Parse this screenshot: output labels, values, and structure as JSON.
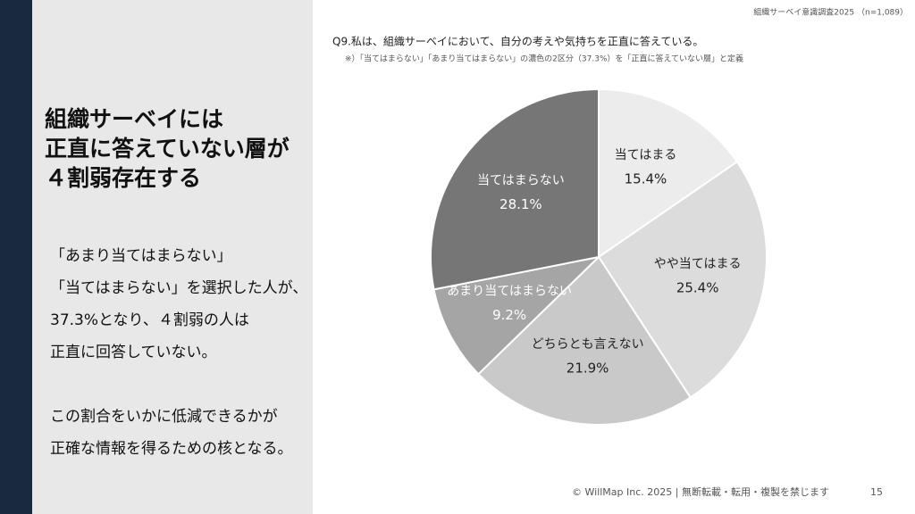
{
  "header": {
    "survey": "組織サーベイ意識調査2025 （n=1,089）"
  },
  "left_panel": {
    "title_lines": [
      "組織サーベイには",
      "正直に答えていない層が",
      "４割弱存在する"
    ],
    "body_lines": [
      "「あまり当てはまらない」",
      "「当てはまらない」を選択した人が、",
      "37.3%となり、４割弱の人は",
      "正直に回答していない。"
    ],
    "conclusion_lines": [
      "この割合をいかに低減できるかが",
      "正確な情報を得るための核となる。"
    ]
  },
  "chart_data": {
    "type": "pie",
    "title": "Q9.私は、組織サーベイにおいて、自分の考えや気持ちを正直に答えている。",
    "note": "※）「当てはまらない」「あまり当てはまらない」の濃色の2区分（37.3%）を「正直に答えていない層」と定義",
    "categories": [
      "当てはまる",
      "やや当てはまる",
      "どちらとも言えない",
      "あまり当てはまらない",
      "当てはまらない"
    ],
    "values": [
      15.4,
      25.4,
      21.9,
      9.2,
      28.1
    ],
    "value_labels": [
      "15.4%",
      "25.4%",
      "21.9%",
      "9.2%",
      "28.1%"
    ],
    "colors": [
      "#ececec",
      "#dcdcdc",
      "#c9c9c9",
      "#a5a5a5",
      "#767676"
    ]
  },
  "footer": {
    "copyright": "© WillMap Inc. 2025 | 無断転載・転用・複製を禁じます",
    "page": "15"
  }
}
